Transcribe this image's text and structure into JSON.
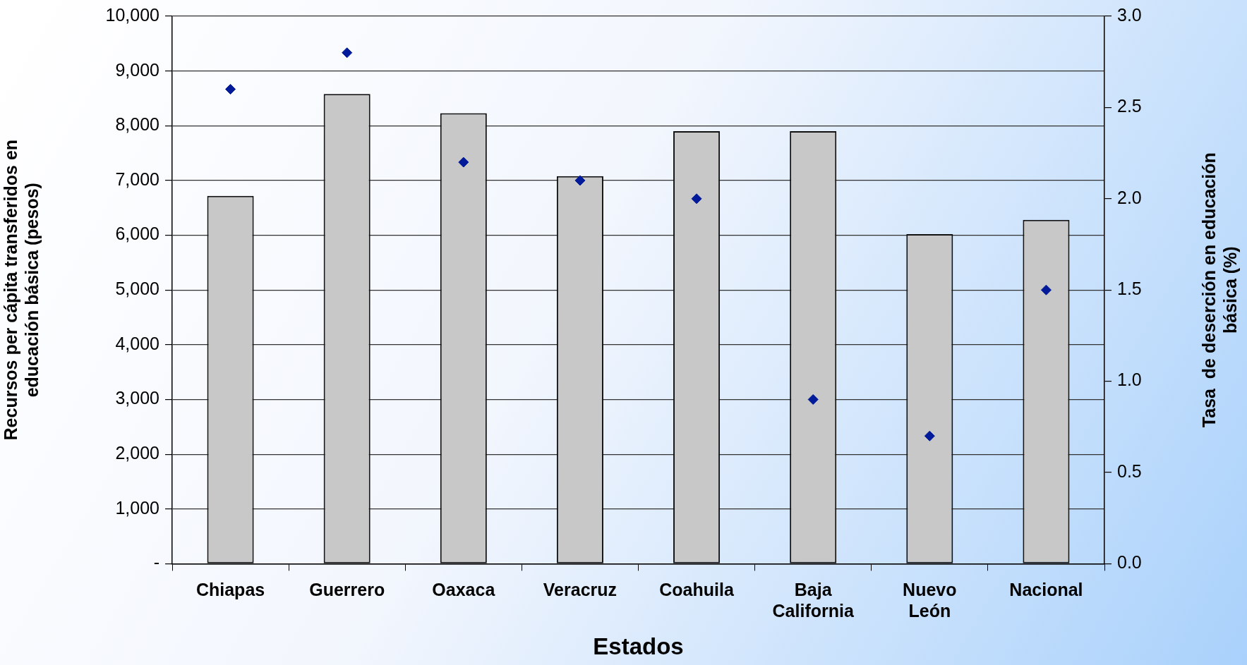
{
  "chart_data": {
    "type": "bar",
    "xlabel": "Estados",
    "ylabel": "Recursos per cápita transferidos en educación básica (pesos)",
    "y2label": "Tasa  de deserción en educación básica (%)",
    "categories": [
      "Chiapas",
      "Guerrero",
      "Oaxaca",
      "Veracruz",
      "Coahuila",
      "Baja California",
      "Nuevo León",
      "Nacional"
    ],
    "series": [
      {
        "color": "#c8c8c8",
        "values": [
          6720,
          8580,
          8230,
          7080,
          7900,
          7900,
          6020,
          6280
        ]
      },
      {
        "type": "scatter",
        "axis": "y2",
        "color": "#001a99",
        "x": [
          "Chiapas",
          "Guerrero",
          "Oaxaca",
          "Veracruz",
          "Coahuila",
          "Baja California",
          "Nuevo León",
          "Nacional"
        ],
        "values": [
          2.6,
          2.8,
          2.2,
          2.1,
          2.0,
          0.9,
          0.7,
          1.5
        ]
      }
    ],
    "ylim": [
      0,
      10000
    ],
    "yticks": [
      {
        "value": 0,
        "label": "-"
      },
      {
        "value": 1000,
        "label": "1,000"
      },
      {
        "value": 2000,
        "label": "2,000"
      },
      {
        "value": 3000,
        "label": "3,000"
      },
      {
        "value": 4000,
        "label": "4,000"
      },
      {
        "value": 5000,
        "label": "5,000"
      },
      {
        "value": 6000,
        "label": "6,000"
      },
      {
        "value": 7000,
        "label": "7,000"
      },
      {
        "value": 8000,
        "label": "8,000"
      },
      {
        "value": 9000,
        "label": "9,000"
      },
      {
        "value": 10000,
        "label": "10,000"
      }
    ],
    "y2lim": [
      0,
      3
    ],
    "y2ticks": [
      {
        "value": 0,
        "label": "0.0"
      },
      {
        "value": 0.5,
        "label": "0.5"
      },
      {
        "value": 1,
        "label": "1.0"
      },
      {
        "value": 1.5,
        "label": "1.5"
      },
      {
        "value": 2,
        "label": "2.0"
      },
      {
        "value": 2.5,
        "label": "2.5"
      },
      {
        "value": 3,
        "label": "3.0"
      }
    ],
    "grid": "y",
    "marker": "diamond",
    "legend": false
  }
}
